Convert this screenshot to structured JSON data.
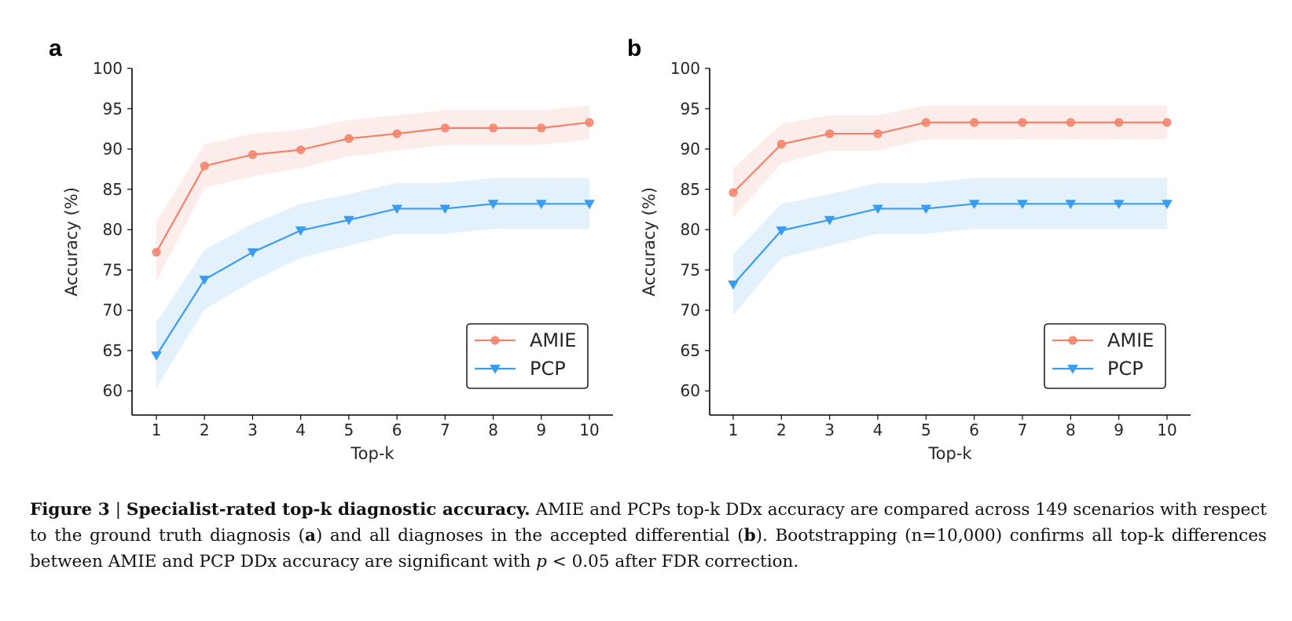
{
  "chart_data": [
    {
      "panel": "a",
      "type": "line",
      "xlabel": "Top-k",
      "ylabel": "Accuracy (%)",
      "x": [
        1,
        2,
        3,
        4,
        5,
        6,
        7,
        8,
        9,
        10
      ],
      "xticks": [
        "1",
        "2",
        "3",
        "4",
        "5",
        "6",
        "7",
        "8",
        "9",
        "10"
      ],
      "ylim": [
        57,
        100
      ],
      "yticks": [
        "60",
        "65",
        "70",
        "75",
        "80",
        "85",
        "90",
        "95",
        "100"
      ],
      "legend_position": "lower right",
      "series": [
        {
          "name": "AMIE",
          "color": "#f4826a",
          "marker": "circle",
          "values": [
            77.2,
            87.9,
            89.3,
            89.9,
            91.3,
            91.9,
            92.6,
            92.6,
            92.6,
            93.3
          ],
          "ci_low": [
            73.6,
            85.2,
            86.6,
            87.6,
            89.1,
            89.8,
            90.5,
            90.5,
            90.5,
            91.2
          ],
          "ci_high": [
            81.0,
            90.6,
            91.9,
            92.4,
            93.6,
            94.2,
            94.8,
            94.8,
            94.8,
            95.4
          ]
        },
        {
          "name": "PCP",
          "color": "#3a9cf0",
          "marker": "triangle-down",
          "values": [
            64.4,
            73.8,
            77.2,
            79.9,
            81.2,
            82.6,
            82.6,
            83.2,
            83.2,
            83.2
          ],
          "ci_low": [
            60.4,
            70.1,
            73.6,
            76.5,
            78.0,
            79.5,
            79.5,
            80.1,
            80.1,
            80.1
          ],
          "ci_high": [
            68.5,
            77.5,
            80.7,
            83.2,
            84.4,
            85.8,
            85.8,
            86.4,
            86.4,
            86.4
          ]
        }
      ]
    },
    {
      "panel": "b",
      "type": "line",
      "xlabel": "Top-k",
      "ylabel": "Accuracy (%)",
      "x": [
        1,
        2,
        3,
        4,
        5,
        6,
        7,
        8,
        9,
        10
      ],
      "xticks": [
        "1",
        "2",
        "3",
        "4",
        "5",
        "6",
        "7",
        "8",
        "9",
        "10"
      ],
      "ylim": [
        57,
        100
      ],
      "yticks": [
        "60",
        "65",
        "70",
        "75",
        "80",
        "85",
        "90",
        "95",
        "100"
      ],
      "legend_position": "lower right",
      "series": [
        {
          "name": "AMIE",
          "color": "#f4826a",
          "marker": "circle",
          "values": [
            84.6,
            90.6,
            91.9,
            91.9,
            93.3,
            93.3,
            93.3,
            93.3,
            93.3,
            93.3
          ],
          "ci_low": [
            81.5,
            88.2,
            89.8,
            89.8,
            91.2,
            91.2,
            91.2,
            91.2,
            91.2,
            91.2
          ],
          "ci_high": [
            87.6,
            93.1,
            94.2,
            94.2,
            95.4,
            95.4,
            95.4,
            95.4,
            95.4,
            95.4
          ]
        },
        {
          "name": "PCP",
          "color": "#3a9cf0",
          "marker": "triangle-down",
          "values": [
            73.2,
            79.9,
            81.2,
            82.6,
            82.6,
            83.2,
            83.2,
            83.2,
            83.2,
            83.2
          ],
          "ci_low": [
            69.4,
            76.5,
            78.0,
            79.5,
            79.5,
            80.1,
            80.1,
            80.1,
            80.1,
            80.1
          ],
          "ci_high": [
            76.9,
            83.2,
            84.4,
            85.8,
            85.8,
            86.4,
            86.4,
            86.4,
            86.4,
            86.4
          ]
        }
      ]
    }
  ],
  "caption": {
    "label": "Figure 3",
    "separator": "|",
    "title": "Specialist-rated top-k diagnostic accuracy.",
    "text_1": "AMIE and PCPs top-k DDx accuracy are compared across 149 scenarios with respect to the ground truth diagnosis (",
    "ref_a": "a",
    "text_2": ") and all diagnoses in the accepted differential (",
    "ref_b": "b",
    "text_3": "). Bootstrapping (n=10,000) confirms all top-k differences between AMIE and PCP DDx accuracy are significant with ",
    "p_symbol": "p",
    "text_4": " < 0.05 after FDR correction."
  }
}
